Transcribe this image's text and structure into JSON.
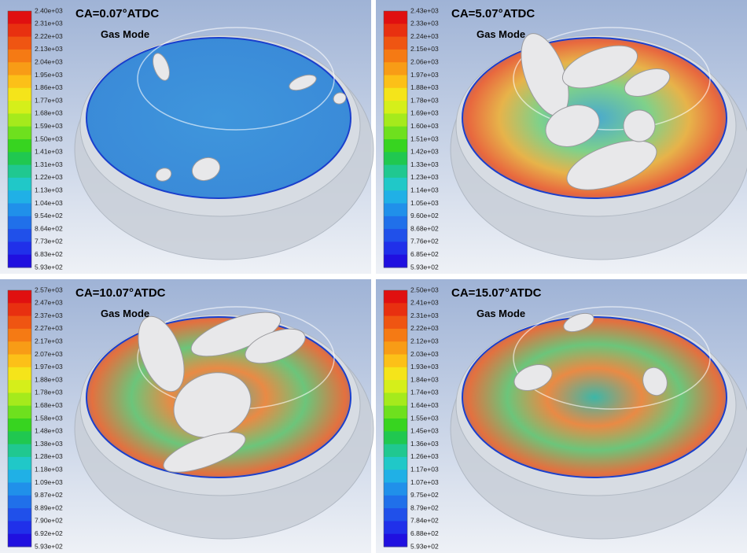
{
  "panels": [
    {
      "title": "CA=0.07°ATDC",
      "subtitle": "Gas Mode",
      "colorbar": [
        "2.40e+03",
        "2.31e+03",
        "2.22e+03",
        "2.13e+03",
        "2.04e+03",
        "1.95e+03",
        "1.86e+03",
        "1.77e+03",
        "1.68e+03",
        "1.59e+03",
        "1.50e+03",
        "1.41e+03",
        "1.31e+03",
        "1.22e+03",
        "1.13e+03",
        "1.04e+03",
        "9.54e+02",
        "8.64e+02",
        "7.73e+02",
        "6.83e+02",
        "5.93e+02"
      ]
    },
    {
      "title": "CA=5.07°ATDC",
      "subtitle": "Gas Mode",
      "colorbar": [
        "2.43e+03",
        "2.33e+03",
        "2.24e+03",
        "2.15e+03",
        "2.06e+03",
        "1.97e+03",
        "1.88e+03",
        "1.78e+03",
        "1.69e+03",
        "1.60e+03",
        "1.51e+03",
        "1.42e+03",
        "1.33e+03",
        "1.23e+03",
        "1.14e+03",
        "1.05e+03",
        "9.60e+02",
        "8.68e+02",
        "7.76e+02",
        "6.85e+02",
        "5.93e+02"
      ]
    },
    {
      "title": "CA=10.07°ATDC",
      "subtitle": "Gas Mode",
      "colorbar": [
        "2.57e+03",
        "2.47e+03",
        "2.37e+03",
        "2.27e+03",
        "2.17e+03",
        "2.07e+03",
        "1.97e+03",
        "1.88e+03",
        "1.78e+03",
        "1.68e+03",
        "1.58e+03",
        "1.48e+03",
        "1.38e+03",
        "1.28e+03",
        "1.18e+03",
        "1.09e+03",
        "9.87e+02",
        "8.89e+02",
        "7.90e+02",
        "6.92e+02",
        "5.93e+02"
      ]
    },
    {
      "title": "CA=15.07°ATDC",
      "subtitle": "Gas Mode",
      "colorbar": [
        "2.50e+03",
        "2.41e+03",
        "2.31e+03",
        "2.22e+03",
        "2.12e+03",
        "2.03e+03",
        "1.93e+03",
        "1.84e+03",
        "1.74e+03",
        "1.64e+03",
        "1.55e+03",
        "1.45e+03",
        "1.36e+03",
        "1.26e+03",
        "1.17e+03",
        "1.07e+03",
        "9.75e+02",
        "8.79e+02",
        "7.84e+02",
        "6.88e+02",
        "5.93e+02"
      ]
    }
  ]
}
